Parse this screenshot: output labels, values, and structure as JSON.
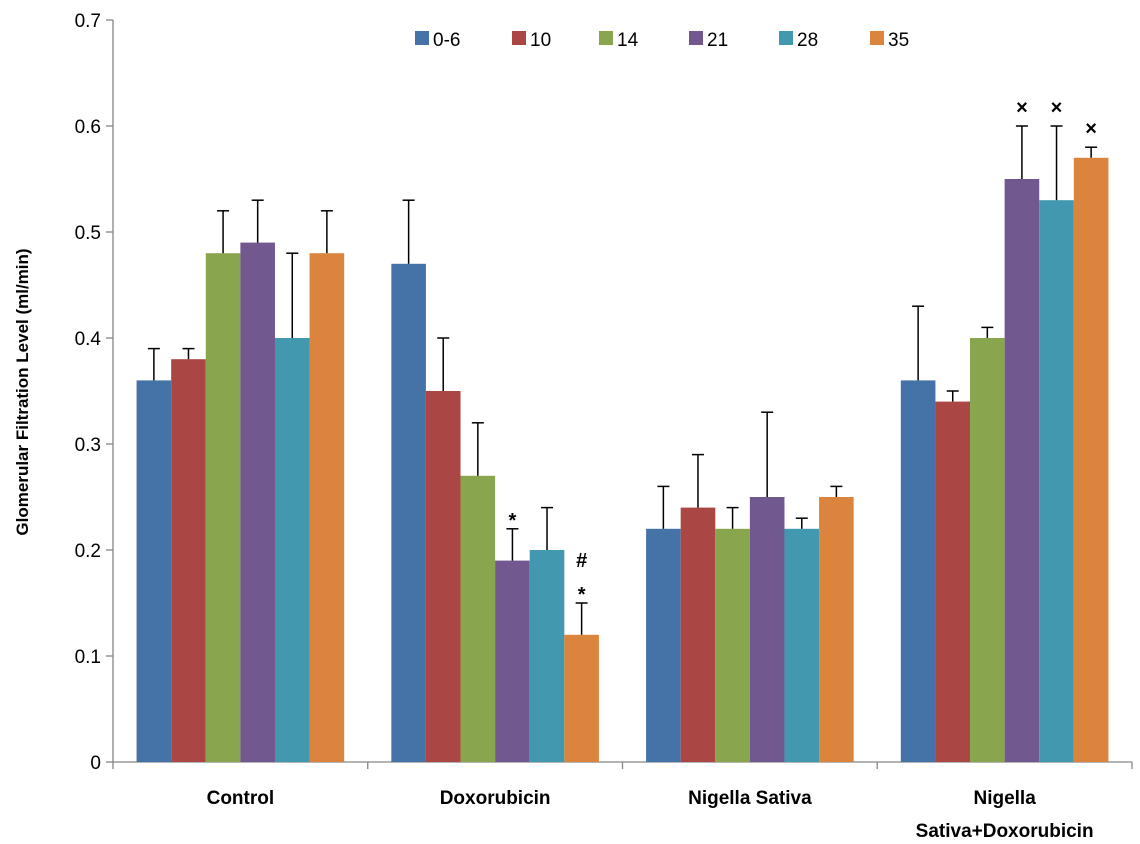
{
  "chart_data": {
    "type": "bar",
    "title": "",
    "xlabel": "",
    "ylabel": "Glomerular Filtration Level (ml/min)",
    "ylim": [
      0,
      0.7
    ],
    "yticks": [
      "0",
      "0.1",
      "0.2",
      "0.3",
      "0.4",
      "0.5",
      "0.6",
      "0.7"
    ],
    "grid": false,
    "legend_position": "top",
    "categories": [
      [
        "Control"
      ],
      [
        "Doxorubicin"
      ],
      [
        "Nigella Sativa"
      ],
      [
        "Nigella",
        "Sativa+Doxorubicin"
      ]
    ],
    "series": [
      {
        "name": "0-6",
        "color": "#4572A7",
        "values": [
          0.36,
          0.47,
          0.22,
          0.36
        ],
        "errors": [
          0.03,
          0.06,
          0.04,
          0.07
        ]
      },
      {
        "name": "10",
        "color": "#AA4643",
        "values": [
          0.38,
          0.35,
          0.24,
          0.34
        ],
        "errors": [
          0.01,
          0.05,
          0.05,
          0.01
        ]
      },
      {
        "name": "14",
        "color": "#89A54E",
        "values": [
          0.48,
          0.27,
          0.22,
          0.4
        ],
        "errors": [
          0.04,
          0.05,
          0.02,
          0.01
        ]
      },
      {
        "name": "21",
        "color": "#71588F",
        "values": [
          0.49,
          0.19,
          0.25,
          0.55
        ],
        "errors": [
          0.04,
          0.03,
          0.08,
          0.05
        ]
      },
      {
        "name": "28",
        "color": "#4198AF",
        "values": [
          0.4,
          0.2,
          0.22,
          0.53
        ],
        "errors": [
          0.08,
          0.04,
          0.01,
          0.07
        ]
      },
      {
        "name": "35",
        "color": "#DB843D",
        "values": [
          0.48,
          0.12,
          0.25,
          0.57
        ],
        "errors": [
          0.04,
          0.03,
          0.01,
          0.01
        ]
      }
    ],
    "annotations": [
      {
        "category": 1,
        "series": 3,
        "lines": [
          "*"
        ]
      },
      {
        "category": 1,
        "series": 5,
        "lines": [
          "#",
          "*"
        ]
      },
      {
        "category": 3,
        "series": 3,
        "lines": [
          "×"
        ]
      },
      {
        "category": 3,
        "series": 4,
        "lines": [
          "×"
        ]
      },
      {
        "category": 3,
        "series": 5,
        "lines": [
          "×"
        ]
      }
    ]
  }
}
